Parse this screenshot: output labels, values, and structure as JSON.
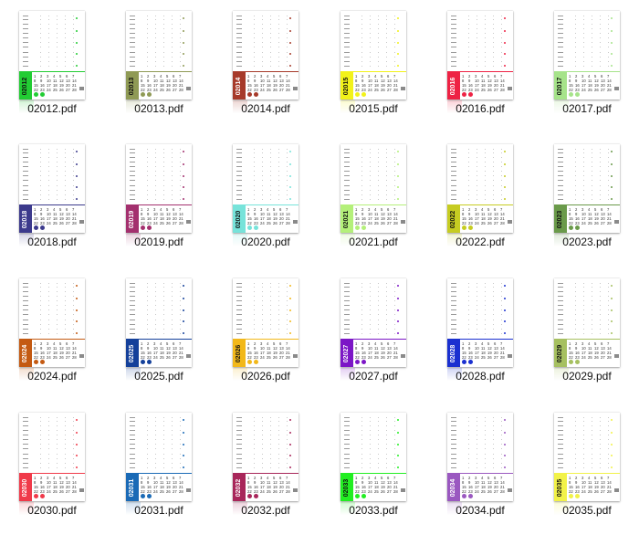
{
  "files": [
    {
      "name": "02012.pdf",
      "code": "02012",
      "color": "#22cc33",
      "text": "#111111"
    },
    {
      "name": "02013.pdf",
      "code": "02013",
      "color": "#8f9a55",
      "text": "#111111"
    },
    {
      "name": "02014.pdf",
      "code": "02014",
      "color": "#a63a2a",
      "text": "#ffffff"
    },
    {
      "name": "02015.pdf",
      "code": "02015",
      "color": "#f2f21a",
      "text": "#111111"
    },
    {
      "name": "02016.pdf",
      "code": "02016",
      "color": "#ee2244",
      "text": "#ffffff"
    },
    {
      "name": "02017.pdf",
      "code": "02017",
      "color": "#a6e38a",
      "text": "#111111"
    },
    {
      "name": "02018.pdf",
      "code": "02018",
      "color": "#3c3a8c",
      "text": "#ffffff"
    },
    {
      "name": "02019.pdf",
      "code": "02019",
      "color": "#a3306e",
      "text": "#ffffff"
    },
    {
      "name": "02020.pdf",
      "code": "02020",
      "color": "#77e3da",
      "text": "#111111"
    },
    {
      "name": "02021.pdf",
      "code": "02021",
      "color": "#b4f07a",
      "text": "#111111"
    },
    {
      "name": "02022.pdf",
      "code": "02022",
      "color": "#c6cc22",
      "text": "#111111"
    },
    {
      "name": "02023.pdf",
      "code": "02023",
      "color": "#6a9a4a",
      "text": "#111111"
    },
    {
      "name": "02024.pdf",
      "code": "02024",
      "color": "#c45a12",
      "text": "#ffffff"
    },
    {
      "name": "02025.pdf",
      "code": "02025",
      "color": "#14409a",
      "text": "#ffffff"
    },
    {
      "name": "02026.pdf",
      "code": "02026",
      "color": "#f2b81a",
      "text": "#111111"
    },
    {
      "name": "02027.pdf",
      "code": "02027",
      "color": "#7c16c6",
      "text": "#ffffff"
    },
    {
      "name": "02028.pdf",
      "code": "02028",
      "color": "#1a30d0",
      "text": "#ffffff"
    },
    {
      "name": "02029.pdf",
      "code": "02029",
      "color": "#a6c060",
      "text": "#111111"
    },
    {
      "name": "02030.pdf",
      "code": "02030",
      "color": "#f03a4a",
      "text": "#ffffff"
    },
    {
      "name": "02031.pdf",
      "code": "02031",
      "color": "#1a6ab6",
      "text": "#ffffff"
    },
    {
      "name": "02032.pdf",
      "code": "02032",
      "color": "#a8265a",
      "text": "#ffffff"
    },
    {
      "name": "02033.pdf",
      "code": "02033",
      "color": "#22ee22",
      "text": "#111111"
    },
    {
      "name": "02034.pdf",
      "code": "02034",
      "color": "#9a58c0",
      "text": "#ffffff"
    },
    {
      "name": "02035.pdf",
      "code": "02035",
      "color": "#f2f248",
      "text": "#111111"
    }
  ],
  "calendar_rows": [
    [
      "1",
      "2",
      "3",
      "4",
      "5",
      "6",
      "7"
    ],
    [
      "8",
      "9",
      "10",
      "11",
      "12",
      "13",
      "14"
    ],
    [
      "15",
      "16",
      "17",
      "18",
      "19",
      "20",
      "21"
    ],
    [
      "22",
      "23",
      "24",
      "25",
      "26",
      "27",
      "28"
    ]
  ]
}
